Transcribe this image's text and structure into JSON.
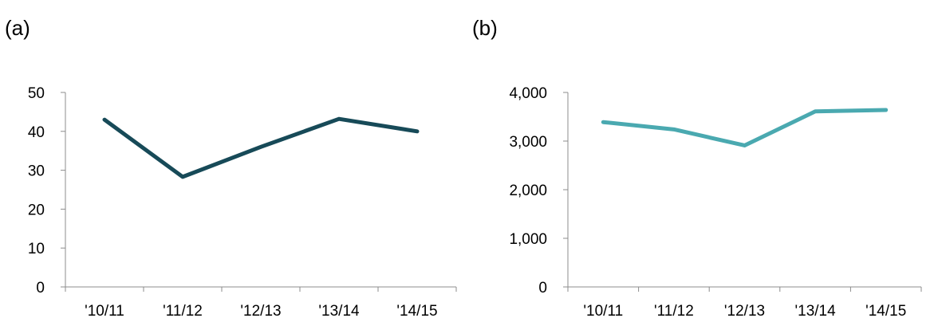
{
  "panels": [
    {
      "label": "(a)"
    },
    {
      "label": "(b)"
    }
  ],
  "chart_data": [
    {
      "type": "line",
      "title": "",
      "xlabel": "",
      "ylabel": "",
      "categories": [
        "'10/11",
        "'11/12",
        "'12/13",
        "'13/14",
        "'14/15"
      ],
      "series": [
        {
          "values": [
            43,
            28.3,
            36,
            43.2,
            40
          ],
          "color": "#174a58"
        }
      ],
      "ylim": [
        0,
        50
      ],
      "yticks": [
        0,
        10,
        20,
        30,
        40,
        50
      ],
      "ytick_labels": [
        "0",
        "10",
        "20",
        "30",
        "40",
        "50"
      ],
      "grid": false
    },
    {
      "type": "line",
      "title": "",
      "xlabel": "",
      "ylabel": "",
      "categories": [
        "'10/11",
        "'11/12",
        "'12/13",
        "'13/14",
        "'14/15"
      ],
      "series": [
        {
          "values": [
            3390,
            3240,
            2910,
            3610,
            3640
          ],
          "color": "#4aa9b0"
        }
      ],
      "ylim": [
        0,
        4000
      ],
      "yticks": [
        0,
        1000,
        2000,
        3000,
        4000
      ],
      "ytick_labels": [
        "0",
        "1,000",
        "2,000",
        "3,000",
        "4,000"
      ],
      "grid": false
    }
  ]
}
